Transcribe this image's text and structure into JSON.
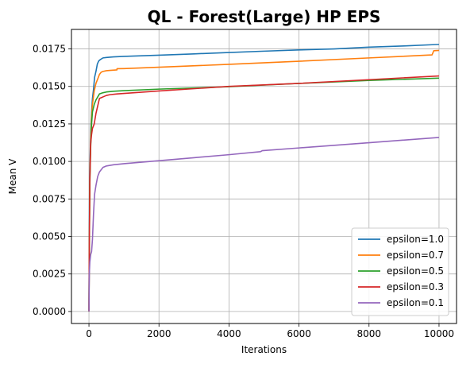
{
  "chart_data": {
    "type": "line",
    "title": "QL - Forest(Large) HP EPS",
    "xlabel": "Iterations",
    "ylabel": "Mean V",
    "xlim": [
      -500,
      10500
    ],
    "ylim": [
      -0.0008,
      0.0188
    ],
    "x_ticks": [
      0,
      2000,
      4000,
      6000,
      8000,
      10000
    ],
    "x_tick_labels": [
      "0",
      "2000",
      "4000",
      "6000",
      "8000",
      "10000"
    ],
    "y_ticks": [
      0.0,
      0.0025,
      0.005,
      0.0075,
      0.01,
      0.0125,
      0.015,
      0.0175
    ],
    "y_tick_labels": [
      "0.0000",
      "0.0025",
      "0.0050",
      "0.0075",
      "0.0100",
      "0.0125",
      "0.0150",
      "0.0175"
    ],
    "grid": true,
    "legend_position": "lower-right",
    "series": [
      {
        "name": "epsilon=1.0",
        "color": "#1f77b4",
        "x": [
          0,
          10,
          20,
          40,
          60,
          80,
          100,
          130,
          160,
          200,
          240,
          280,
          330,
          400,
          500,
          700,
          1000,
          2000,
          3000,
          4000,
          5000,
          6000,
          7000,
          8000,
          9000,
          10000
        ],
        "y": [
          0.0,
          0.0055,
          0.009,
          0.011,
          0.0125,
          0.0135,
          0.0142,
          0.0148,
          0.0156,
          0.016,
          0.0165,
          0.0167,
          0.0168,
          0.0169,
          0.01693,
          0.01697,
          0.017,
          0.01708,
          0.01717,
          0.01726,
          0.01735,
          0.01743,
          0.0175,
          0.01762,
          0.0177,
          0.0178
        ]
      },
      {
        "name": "epsilon=0.7",
        "color": "#ff7f0e",
        "x": [
          0,
          10,
          25,
          50,
          75,
          100,
          150,
          200,
          250,
          300,
          350,
          400,
          500,
          600,
          800,
          801,
          1000,
          2000,
          4000,
          6000,
          8000,
          9800,
          9850,
          10000
        ],
        "y": [
          0.0,
          0.004,
          0.009,
          0.0115,
          0.013,
          0.0138,
          0.0147,
          0.0152,
          0.0155,
          0.0158,
          0.01595,
          0.016,
          0.01605,
          0.01607,
          0.0161,
          0.01618,
          0.01619,
          0.01628,
          0.01647,
          0.01668,
          0.0169,
          0.0171,
          0.01738,
          0.0174
        ]
      },
      {
        "name": "epsilon=0.5",
        "color": "#2ca02c",
        "x": [
          0,
          10,
          25,
          50,
          75,
          100,
          150,
          200,
          250,
          300,
          400,
          500,
          700,
          1000,
          2000,
          4000,
          6000,
          8000,
          10000
        ],
        "y": [
          0.0,
          0.004,
          0.0085,
          0.011,
          0.0125,
          0.0133,
          0.0138,
          0.0141,
          0.0143,
          0.0145,
          0.01458,
          0.01463,
          0.01468,
          0.01472,
          0.01482,
          0.01498,
          0.0152,
          0.0154,
          0.01555
        ]
      },
      {
        "name": "epsilon=0.3",
        "color": "#d62728",
        "x": [
          0,
          10,
          25,
          50,
          75,
          100,
          150,
          200,
          250,
          300,
          400,
          500,
          600,
          800,
          1000,
          2000,
          4000,
          6000,
          8000,
          10000
        ],
        "y": [
          0.0,
          0.0045,
          0.0088,
          0.0112,
          0.0118,
          0.0122,
          0.0125,
          0.0132,
          0.0137,
          0.0142,
          0.0143,
          0.0144,
          0.01445,
          0.0145,
          0.01453,
          0.0147,
          0.015,
          0.0152,
          0.01545,
          0.0157
        ]
      },
      {
        "name": "epsilon=0.1",
        "color": "#9467bd",
        "x": [
          0,
          10,
          25,
          50,
          75,
          100,
          130,
          160,
          200,
          250,
          300,
          400,
          500,
          700,
          1000,
          2000,
          3000,
          4000,
          4900,
          4950,
          6000,
          8000,
          10000
        ],
        "y": [
          0.0,
          0.0025,
          0.0033,
          0.0038,
          0.004,
          0.0048,
          0.0065,
          0.0078,
          0.0084,
          0.009,
          0.0093,
          0.0096,
          0.0097,
          0.00978,
          0.00985,
          0.01005,
          0.01025,
          0.01045,
          0.01065,
          0.01072,
          0.0109,
          0.01125,
          0.0116
        ]
      }
    ]
  }
}
